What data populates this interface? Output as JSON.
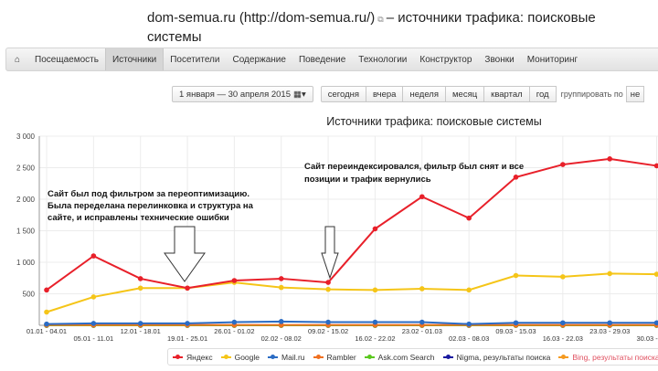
{
  "header": {
    "site": "dom-semua.ru (http://dom-semua.ru/)",
    "title_suffix": "– источники трафика: поисковые системы"
  },
  "nav": {
    "home_icon": "home-icon",
    "items": [
      "Посещаемость",
      "Источники",
      "Посетители",
      "Содержание",
      "Поведение",
      "Технологии",
      "Конструктор",
      "Звонки",
      "Мониторинг"
    ],
    "active": "Источники"
  },
  "controls": {
    "date_range": "1 января — 30 апреля 2015",
    "periods": [
      "сегодня",
      "вчера",
      "неделя",
      "месяц",
      "квартал",
      "год"
    ],
    "group_label": "группировать по",
    "group_value": "не"
  },
  "chart_data": {
    "type": "line",
    "title": "Источники трафика: поисковые системы",
    "categories": [
      "01.01 - 04.01",
      "05.01 - 11.01",
      "12.01 - 18.01",
      "19.01 - 25.01",
      "26.01 - 01.02",
      "02.02 - 08.02",
      "09.02 - 15.02",
      "16.02 - 22.02",
      "23.02 - 01.03",
      "02.03 - 08.03",
      "09.03 - 15.03",
      "16.03 - 22.03",
      "23.03 - 29.03",
      "30.03 - 05.04"
    ],
    "ylim": [
      0,
      3000
    ],
    "yticks": [
      "3 000",
      "2 500",
      "2 000",
      "1 500",
      "1 000",
      "500"
    ],
    "grid": true,
    "legend": "bottom",
    "series": [
      {
        "name": "Яндекс",
        "color": "#e8202a",
        "values": [
          560,
          1100,
          740,
          590,
          710,
          740,
          680,
          1530,
          2040,
          1700,
          2350,
          2550,
          2640,
          2530
        ]
      },
      {
        "name": "Google",
        "color": "#f5c518",
        "values": [
          210,
          450,
          590,
          590,
          680,
          600,
          570,
          560,
          580,
          560,
          790,
          770,
          820,
          810
        ]
      },
      {
        "name": "Mail.ru",
        "color": "#2b6cc4",
        "values": [
          20,
          30,
          30,
          30,
          50,
          60,
          50,
          50,
          50,
          20,
          40,
          40,
          40,
          40
        ]
      },
      {
        "name": "Rambler",
        "color": "#f07020",
        "values": [
          5,
          5,
          5,
          5,
          5,
          5,
          5,
          5,
          5,
          5,
          5,
          5,
          5,
          5
        ]
      },
      {
        "name": "Ask.com Search",
        "color": "#5ac81e",
        "values": [
          0,
          0,
          0,
          0,
          0,
          0,
          0,
          0,
          0,
          0,
          0,
          0,
          0,
          0
        ]
      },
      {
        "name": "Nigma, результаты поиска",
        "color": "#1a1aa0",
        "values": [
          0,
          0,
          0,
          0,
          0,
          0,
          0,
          0,
          0,
          0,
          0,
          0,
          0,
          0
        ]
      },
      {
        "name": "Bing, результаты поиска",
        "color": "#f59a20",
        "values": [
          0,
          0,
          0,
          0,
          0,
          0,
          0,
          0,
          0,
          0,
          0,
          0,
          0,
          0
        ]
      }
    ],
    "annotations": [
      {
        "text": "Сайт был под фильтром за переоптимизацию. Была переделана перелинковка и структура на сайте, и исправлены технические ошибки"
      },
      {
        "text": "Сайт переиндексировался, фильтр был снят и все позиции и трафик вернулись"
      }
    ]
  }
}
